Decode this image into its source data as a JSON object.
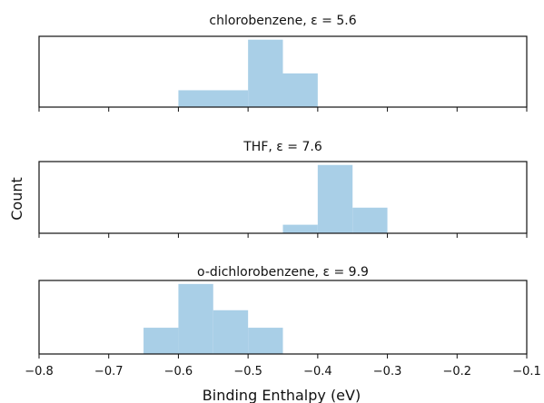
{
  "figure": {
    "xlabel": "Binding Enthalpy (eV)",
    "ylabel": "Count",
    "xlim": [
      -0.8,
      -0.1
    ],
    "xticks": [
      "−0.8",
      "−0.7",
      "−0.6",
      "−0.5",
      "−0.4",
      "−0.3",
      "−0.2",
      "−0.1"
    ],
    "bar_color": "#a9cfe7"
  },
  "chart_data": [
    {
      "type": "bar",
      "title": "chlorobenzene, ε = 5.6",
      "xlim": [
        -0.8,
        -0.1
      ],
      "ylim": [
        0,
        4.2
      ],
      "bins": [
        {
          "x0": -0.6,
          "x1": -0.5,
          "count": 1
        },
        {
          "x0": -0.5,
          "x1": -0.45,
          "count": 4
        },
        {
          "x0": -0.45,
          "x1": -0.4,
          "count": 2
        }
      ]
    },
    {
      "type": "bar",
      "title": "THF, ε = 7.6",
      "xlim": [
        -0.8,
        -0.1
      ],
      "ylim": [
        0,
        4.2
      ],
      "bins": [
        {
          "x0": -0.45,
          "x1": -0.4,
          "count": 0.5
        },
        {
          "x0": -0.4,
          "x1": -0.35,
          "count": 4
        },
        {
          "x0": -0.35,
          "x1": -0.3,
          "count": 1.5
        }
      ]
    },
    {
      "type": "bar",
      "title": "o-dichlorobenzene, ε = 9.9",
      "xlim": [
        -0.8,
        -0.1
      ],
      "ylim": [
        0,
        4.2
      ],
      "bins": [
        {
          "x0": -0.65,
          "x1": -0.6,
          "count": 1.5
        },
        {
          "x0": -0.6,
          "x1": -0.55,
          "count": 4
        },
        {
          "x0": -0.55,
          "x1": -0.5,
          "count": 2.5
        },
        {
          "x0": -0.5,
          "x1": -0.45,
          "count": 1.5
        }
      ]
    }
  ]
}
